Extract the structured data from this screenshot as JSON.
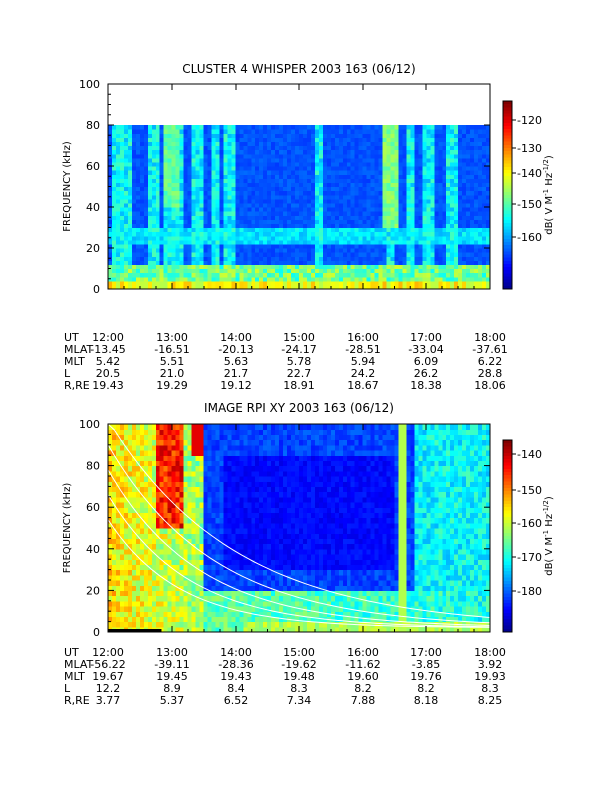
{
  "chart_data": [
    {
      "type": "heatmap",
      "title": "CLUSTER 4 WHISPER 2003 163 (06/12)",
      "ylabel": "FREQUENCY (kHz)",
      "colorbar_label": "dB( V M",
      "colorbar_sup1": "-1",
      "colorbar_mid": " Hz",
      "colorbar_sup2": "-1/2",
      "colorbar_end": ")",
      "ylim": [
        0,
        100
      ],
      "y_ticks": [
        "0",
        "20",
        "40",
        "60",
        "80",
        "100"
      ],
      "colorbar_range": [
        -167,
        -117
      ],
      "colorbar_ticks": [
        "-120",
        "-130",
        "-140",
        "-150",
        "-160"
      ],
      "data_top_khz": 80,
      "x_ticks": [
        "12:00",
        "13:00",
        "14:00",
        "15:00",
        "16:00",
        "17:00",
        "18:00"
      ],
      "ephemeris": {
        "labels": [
          "UT",
          "MLAT",
          "MLT",
          "L",
          "R,RE"
        ],
        "rows": [
          [
            "12:00",
            "13:00",
            "14:00",
            "15:00",
            "16:00",
            "17:00",
            "18:00"
          ],
          [
            "-13.45",
            "-16.51",
            "-20.13",
            "-24.17",
            "-28.51",
            "-33.04",
            "-37.61"
          ],
          [
            "5.42",
            "5.51",
            "5.63",
            "5.78",
            "5.94",
            "6.09",
            "6.22"
          ],
          [
            "20.5",
            "21.0",
            "21.7",
            "22.7",
            "24.2",
            "26.2",
            "28.8"
          ],
          [
            "19.43",
            "19.29",
            "19.12",
            "18.91",
            "18.67",
            "18.38",
            "18.06"
          ]
        ]
      }
    },
    {
      "type": "heatmap",
      "title": "IMAGE RPI XY 2003 163 (06/12)",
      "ylabel": "FREQUENCY (kHz)",
      "colorbar_label": "dB( V M",
      "colorbar_sup1": "-1",
      "colorbar_mid": " Hz",
      "colorbar_sup2": "-1/2",
      "colorbar_end": ")",
      "ylim": [
        0,
        100
      ],
      "y_ticks": [
        "0",
        "20",
        "40",
        "60",
        "80",
        "100"
      ],
      "colorbar_range": [
        -185,
        -135
      ],
      "colorbar_ticks": [
        "-140",
        "-150",
        "-160",
        "-170",
        "-180"
      ],
      "x_ticks": [
        "12:00",
        "13:00",
        "14:00",
        "15:00",
        "16:00",
        "17:00",
        "18:00"
      ],
      "ephemeris": {
        "labels": [
          "UT",
          "MLAT",
          "MLT",
          "L",
          "R,RE"
        ],
        "rows": [
          [
            "12:00",
            "13:00",
            "14:00",
            "15:00",
            "16:00",
            "17:00",
            "18:00"
          ],
          [
            "-56.22",
            "-39.11",
            "-28.36",
            "-19.62",
            "-11.62",
            "-3.85",
            "3.92"
          ],
          [
            "19.67",
            "19.45",
            "19.43",
            "19.48",
            "19.60",
            "19.76",
            "19.93"
          ],
          [
            "12.2",
            "8.9",
            "8.4",
            "8.3",
            "8.2",
            "8.2",
            "8.3"
          ],
          [
            "3.77",
            "5.37",
            "6.52",
            "7.34",
            "7.88",
            "8.18",
            "8.25"
          ]
        ]
      }
    }
  ]
}
